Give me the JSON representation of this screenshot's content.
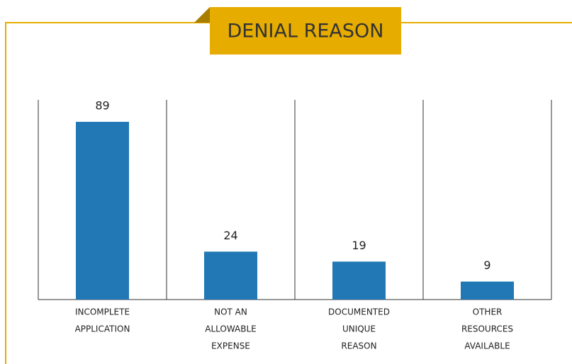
{
  "chart_data": {
    "type": "bar",
    "title": "DENIAL REASON",
    "categories": [
      [
        "INCOMPLETE",
        "APPLICATION"
      ],
      [
        "NOT AN",
        "ALLOWABLE",
        "EXPENSE"
      ],
      [
        "DOCUMENTED",
        "UNIQUE",
        "REASON"
      ],
      [
        "OTHER",
        "RESOURCES",
        "AVAILABLE"
      ]
    ],
    "values": [
      89,
      24,
      19,
      9
    ],
    "color": "#2178b4",
    "ylim": [
      0,
      100
    ]
  }
}
